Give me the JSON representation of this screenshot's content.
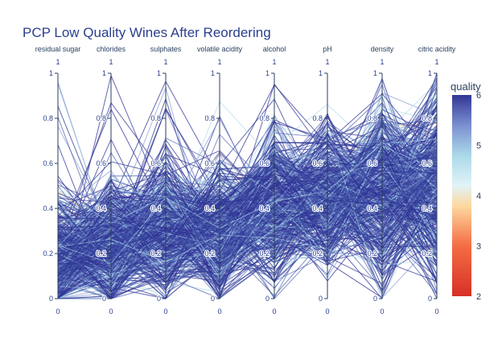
{
  "chart_data": {
    "type": "parallel_coordinates",
    "title": "PCP Low Quality Wines  After Reordering",
    "dimensions": [
      {
        "label": "residual sugar",
        "range": [
          0,
          1
        ],
        "ticks": [
          0,
          0.2,
          0.4,
          0.6,
          0.8,
          1
        ]
      },
      {
        "label": "chlorides",
        "range": [
          0,
          1
        ],
        "ticks": [
          0,
          0.2,
          0.4,
          0.6,
          0.8,
          1
        ]
      },
      {
        "label": "sulphates",
        "range": [
          0,
          1
        ],
        "ticks": [
          0,
          0.2,
          0.4,
          0.6,
          0.8,
          1
        ]
      },
      {
        "label": "volatile acidity",
        "range": [
          0,
          1
        ],
        "ticks": [
          0,
          0.2,
          0.4,
          0.6,
          0.8,
          1
        ]
      },
      {
        "label": "alcohol",
        "range": [
          0,
          1
        ],
        "ticks": [
          0,
          0.2,
          0.4,
          0.6,
          0.8,
          1
        ]
      },
      {
        "label": "pH",
        "range": [
          0,
          1
        ],
        "ticks": [
          0,
          0.2,
          0.4,
          0.6,
          0.8,
          1
        ]
      },
      {
        "label": "density",
        "range": [
          0,
          1
        ],
        "ticks": [
          0,
          0.2,
          0.4,
          0.6,
          0.8,
          1
        ]
      },
      {
        "label": "citric acidity",
        "range": [
          0,
          1
        ],
        "ticks": [
          0,
          0.2,
          0.4,
          0.6,
          0.8,
          1
        ]
      }
    ],
    "colorbar": {
      "title": "quality",
      "range": [
        2,
        6
      ],
      "ticks": [
        2,
        3,
        4,
        5,
        6
      ],
      "colorscale": [
        [
          0.0,
          "#d73027"
        ],
        [
          0.25,
          "#f46d43"
        ],
        [
          0.45,
          "#fdd9a0"
        ],
        [
          0.55,
          "#e0f3f8"
        ],
        [
          0.7,
          "#abd9e9"
        ],
        [
          0.85,
          "#7b8fd0"
        ],
        [
          1.0,
          "#313695"
        ]
      ]
    },
    "line_color_dominant": "#313695"
  }
}
